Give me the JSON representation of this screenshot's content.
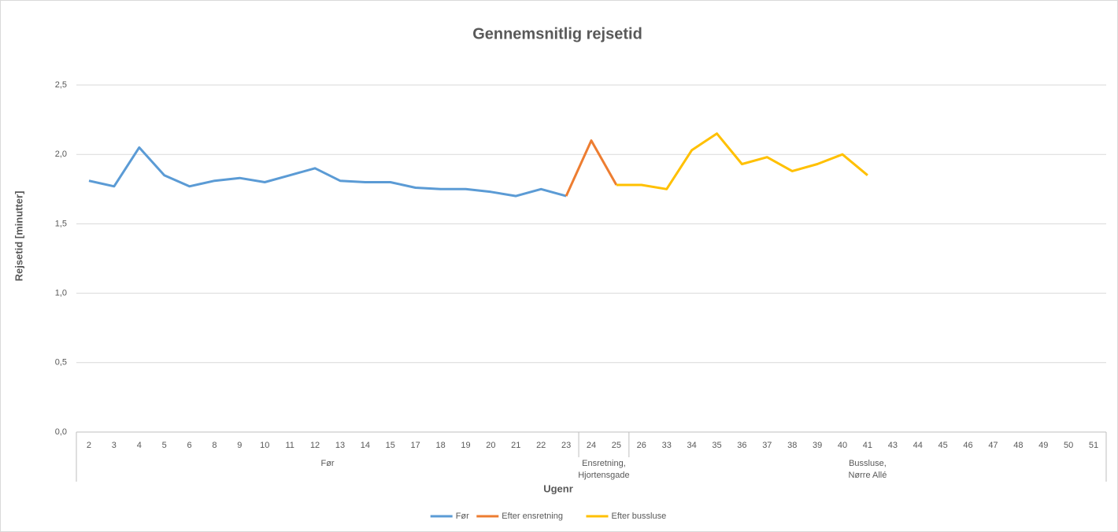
{
  "chart_data": {
    "type": "line",
    "title": "Gennemsnitlig rejsetid",
    "x_label": "Ugenr",
    "y_label": "Rejsetid [minutter]",
    "categories": [
      "2",
      "3",
      "4",
      "5",
      "6",
      "8",
      "9",
      "10",
      "11",
      "12",
      "13",
      "14",
      "15",
      "17",
      "18",
      "19",
      "20",
      "21",
      "22",
      "23",
      "24",
      "25",
      "26",
      "33",
      "34",
      "35",
      "36",
      "37",
      "38",
      "39",
      "40",
      "41",
      "43",
      "44",
      "45",
      "46",
      "47",
      "48",
      "49",
      "50",
      "51"
    ],
    "groups": [
      {
        "lines": [
          "Før"
        ],
        "start": 0,
        "end": 19
      },
      {
        "lines": [
          "Ensretning,",
          "Hjortensgade"
        ],
        "start": 20,
        "end": 21
      },
      {
        "lines": [
          "Bussluse,",
          "Nørre Allé"
        ],
        "start": 22,
        "end": 40
      }
    ],
    "series": [
      {
        "name": "Før",
        "color": "#5b9bd5",
        "values": [
          1.81,
          1.77,
          2.05,
          1.85,
          1.77,
          1.81,
          1.83,
          1.8,
          1.85,
          1.9,
          1.81,
          1.8,
          1.8,
          1.76,
          1.75,
          1.75,
          1.73,
          1.7,
          1.75,
          1.7,
          null,
          null,
          null,
          null,
          null,
          null,
          null,
          null,
          null,
          null,
          null,
          null,
          null,
          null,
          null,
          null,
          null,
          null,
          null,
          null,
          null
        ]
      },
      {
        "name": "Efter ensretning",
        "color": "#ed7d31",
        "values": [
          null,
          null,
          null,
          null,
          null,
          null,
          null,
          null,
          null,
          null,
          null,
          null,
          null,
          null,
          null,
          null,
          null,
          null,
          null,
          1.7,
          2.1,
          1.78,
          null,
          null,
          null,
          null,
          null,
          null,
          null,
          null,
          null,
          null,
          null,
          null,
          null,
          null,
          null,
          null,
          null,
          null,
          null
        ]
      },
      {
        "name": "Efter bussluse",
        "color": "#ffc000",
        "values": [
          null,
          null,
          null,
          null,
          null,
          null,
          null,
          null,
          null,
          null,
          null,
          null,
          null,
          null,
          null,
          null,
          null,
          null,
          null,
          null,
          null,
          1.78,
          1.78,
          1.75,
          2.03,
          2.15,
          1.93,
          1.98,
          1.88,
          1.93,
          2.0,
          1.85,
          null,
          null,
          null,
          null,
          null,
          null,
          null,
          null,
          null
        ]
      }
    ],
    "ylim": [
      0,
      2.5
    ],
    "yticks": [
      {
        "value": 0,
        "label": "0,0"
      },
      {
        "value": 0.5,
        "label": "0,5"
      },
      {
        "value": 1,
        "label": "1,0"
      },
      {
        "value": 1.5,
        "label": "1,5"
      },
      {
        "value": 2,
        "label": "2,0"
      },
      {
        "value": 2.5,
        "label": "2,5"
      }
    ],
    "grid": true,
    "legend": "bottom"
  }
}
